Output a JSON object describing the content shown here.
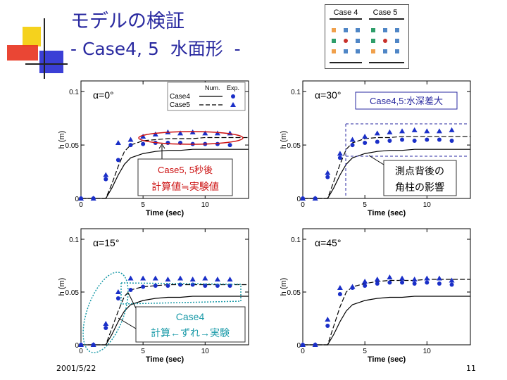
{
  "slide": {
    "title_line1": "モデルの検証",
    "title_line2": "- Case4, 5  水面形  -",
    "date": "2001/5/22",
    "page_number": "11"
  },
  "case_diagram": {
    "labels": [
      "Case 4",
      "Case 5"
    ],
    "marker_colors": [
      "#4f86c6",
      "#c8302a",
      "#2e9e6a",
      "#f0a04b"
    ]
  },
  "legend": {
    "col_num": "Num.",
    "col_exp": "Exp.",
    "rows": [
      "Case4",
      "Case5"
    ]
  },
  "annotations": {
    "a0_line1": "Case5, 5秒後",
    "a0_line2": "計算値≒実験値",
    "a30_top": "Case4,5:水深差大",
    "a30_line1": "測点背後の",
    "a30_line2": "角柱の影響",
    "a15_line1": "Case4",
    "a15_line2": "計算←ずれ→実験"
  },
  "colors": {
    "title": "#2a2aa0",
    "marker": "#1a2fc8",
    "red_note": "#cc1111",
    "cyan_note": "#1a9aa8"
  },
  "chart_data": [
    {
      "type": "line",
      "panel_label": "α=0°",
      "xlabel": "Time (sec)",
      "ylabel": "h (m)",
      "xlim": [
        0,
        13.5
      ],
      "ylim": [
        0,
        0.11
      ],
      "x_ticks": [
        0,
        5,
        10
      ],
      "y_ticks": [
        0,
        0.05,
        0.1
      ],
      "y_tick_labels": [
        "0",
        "0.05",
        "0.1"
      ],
      "series": [
        {
          "name": "Case4",
          "kind": "line",
          "style": "solid",
          "x": [
            0,
            1,
            2,
            2.5,
            3,
            3.5,
            4,
            5,
            6,
            7,
            8,
            9,
            10,
            11,
            12,
            13.5
          ],
          "y": [
            0,
            0,
            0,
            0.01,
            0.022,
            0.032,
            0.038,
            0.042,
            0.044,
            0.045,
            0.045,
            0.046,
            0.046,
            0.046,
            0.046,
            0.046
          ]
        },
        {
          "name": "Case5",
          "kind": "line",
          "style": "dashed",
          "x": [
            0,
            1,
            2,
            2.5,
            3,
            3.5,
            4,
            5,
            6,
            7,
            8,
            9,
            10,
            11,
            12,
            13.5
          ],
          "y": [
            0,
            0,
            0,
            0.014,
            0.03,
            0.044,
            0.05,
            0.054,
            0.055,
            0.056,
            0.056,
            0.056,
            0.057,
            0.057,
            0.057,
            0.057
          ]
        },
        {
          "name": "Case4",
          "kind": "marker",
          "marker": "circle",
          "x": [
            0,
            1,
            2,
            3,
            4,
            5,
            6,
            7,
            8,
            9,
            10,
            11,
            12
          ],
          "y": [
            0,
            0,
            0.018,
            0.036,
            0.05,
            0.051,
            0.052,
            0.052,
            0.052,
            0.051,
            0.051,
            0.051,
            0.05
          ]
        },
        {
          "name": "Case5",
          "kind": "marker",
          "marker": "triangle",
          "x": [
            0,
            1,
            2,
            3,
            4,
            5,
            6,
            7,
            8,
            9,
            10,
            11,
            12
          ],
          "y": [
            0,
            0,
            0.022,
            0.052,
            0.055,
            0.058,
            0.06,
            0.062,
            0.061,
            0.062,
            0.061,
            0.061,
            0.061
          ]
        }
      ]
    },
    {
      "type": "line",
      "panel_label": "α=30°",
      "xlabel": "Time (sec)",
      "ylabel": "h (m)",
      "xlim": [
        0,
        13.5
      ],
      "ylim": [
        0,
        0.11
      ],
      "x_ticks": [
        0,
        5,
        10
      ],
      "y_ticks": [
        0,
        0.05,
        0.1
      ],
      "y_tick_labels": [
        "0",
        "0.05",
        "0.1"
      ],
      "series": [
        {
          "name": "Case4",
          "kind": "line",
          "style": "solid",
          "x": [
            0,
            1,
            2,
            2.5,
            3,
            3.5,
            4,
            5,
            6,
            7,
            8,
            9,
            10,
            11,
            12,
            13.5
          ],
          "y": [
            0,
            0,
            0,
            0.01,
            0.022,
            0.032,
            0.038,
            0.042,
            0.044,
            0.045,
            0.045,
            0.046,
            0.046,
            0.046,
            0.046,
            0.046
          ]
        },
        {
          "name": "Case5",
          "kind": "line",
          "style": "dashed",
          "x": [
            0,
            1,
            2,
            2.5,
            3,
            3.5,
            4,
            5,
            6,
            7,
            8,
            9,
            10,
            11,
            12,
            13.5
          ],
          "y": [
            0,
            0,
            0,
            0.016,
            0.032,
            0.046,
            0.052,
            0.056,
            0.057,
            0.057,
            0.058,
            0.058,
            0.058,
            0.058,
            0.058,
            0.058
          ]
        },
        {
          "name": "Case4",
          "kind": "marker",
          "marker": "circle",
          "x": [
            0,
            1,
            2,
            3,
            4,
            5,
            6,
            7,
            8,
            9,
            10,
            11,
            12
          ],
          "y": [
            0,
            0,
            0.02,
            0.038,
            0.05,
            0.052,
            0.053,
            0.054,
            0.055,
            0.054,
            0.055,
            0.055,
            0.054
          ]
        },
        {
          "name": "Case5",
          "kind": "marker",
          "marker": "triangle",
          "x": [
            0,
            1,
            2,
            3,
            4,
            5,
            6,
            7,
            8,
            9,
            10,
            11,
            12
          ],
          "y": [
            0,
            0,
            0.024,
            0.042,
            0.055,
            0.058,
            0.061,
            0.062,
            0.063,
            0.064,
            0.063,
            0.063,
            0.064
          ]
        }
      ]
    },
    {
      "type": "line",
      "panel_label": "α=15°",
      "xlabel": "Time (sec)",
      "ylabel": "h (m)",
      "xlim": [
        0,
        13.5
      ],
      "ylim": [
        0,
        0.11
      ],
      "x_ticks": [
        0,
        5,
        10
      ],
      "y_ticks": [
        0,
        0.05,
        0.1
      ],
      "y_tick_labels": [
        "0",
        "0.05",
        "0.1"
      ],
      "series": [
        {
          "name": "Case4",
          "kind": "line",
          "style": "solid",
          "x": [
            0,
            1,
            2,
            2.5,
            3,
            3.5,
            4,
            5,
            6,
            7,
            8,
            9,
            10,
            11,
            12,
            13.5
          ],
          "y": [
            0,
            0,
            0,
            0.01,
            0.022,
            0.032,
            0.038,
            0.042,
            0.044,
            0.045,
            0.045,
            0.046,
            0.046,
            0.046,
            0.046,
            0.046
          ]
        },
        {
          "name": "Case5",
          "kind": "line",
          "style": "dashed",
          "x": [
            0,
            1,
            2,
            2.5,
            3,
            3.5,
            4,
            5,
            6,
            7,
            8,
            9,
            10,
            11,
            12,
            13.5
          ],
          "y": [
            0,
            0,
            0,
            0.016,
            0.032,
            0.046,
            0.052,
            0.055,
            0.056,
            0.057,
            0.057,
            0.057,
            0.057,
            0.057,
            0.057,
            0.057
          ]
        },
        {
          "name": "Case4",
          "kind": "marker",
          "marker": "circle",
          "x": [
            0,
            1,
            2,
            3,
            4,
            5,
            6,
            7,
            8,
            9,
            10,
            11,
            12
          ],
          "y": [
            0,
            0,
            0.016,
            0.044,
            0.052,
            0.055,
            0.056,
            0.056,
            0.057,
            0.057,
            0.056,
            0.056,
            0.056
          ]
        },
        {
          "name": "Case5",
          "kind": "marker",
          "marker": "triangle",
          "x": [
            0,
            1,
            2,
            3,
            4,
            5,
            6,
            7,
            8,
            9,
            10,
            11,
            12
          ],
          "y": [
            0,
            0,
            0.02,
            0.05,
            0.063,
            0.063,
            0.063,
            0.062,
            0.063,
            0.062,
            0.063,
            0.062,
            0.062
          ]
        }
      ]
    },
    {
      "type": "line",
      "panel_label": "α=45°",
      "xlabel": "Time (sec)",
      "ylabel": "h (m)",
      "xlim": [
        0,
        13.5
      ],
      "ylim": [
        0,
        0.11
      ],
      "x_ticks": [
        0,
        5,
        10
      ],
      "y_ticks": [
        0,
        0.05,
        0.1
      ],
      "y_tick_labels": [
        "0",
        "0.05",
        "0.1"
      ],
      "series": [
        {
          "name": "Case4",
          "kind": "line",
          "style": "solid",
          "x": [
            0,
            1,
            2,
            2.5,
            3,
            3.5,
            4,
            5,
            6,
            7,
            8,
            9,
            10,
            11,
            12,
            13.5
          ],
          "y": [
            0,
            0,
            0,
            0.01,
            0.022,
            0.032,
            0.038,
            0.042,
            0.044,
            0.045,
            0.045,
            0.046,
            0.046,
            0.046,
            0.046,
            0.046
          ]
        },
        {
          "name": "Case5",
          "kind": "line",
          "style": "dashed",
          "x": [
            0,
            1,
            2,
            2.5,
            3,
            3.5,
            4,
            5,
            6,
            7,
            8,
            9,
            10,
            11,
            12,
            13.5
          ],
          "y": [
            0,
            0,
            0,
            0.018,
            0.036,
            0.05,
            0.055,
            0.058,
            0.06,
            0.061,
            0.061,
            0.061,
            0.062,
            0.062,
            0.062,
            0.062
          ]
        },
        {
          "name": "Case4",
          "kind": "marker",
          "marker": "circle",
          "x": [
            0,
            1,
            2,
            3,
            4,
            5,
            6,
            7,
            8,
            9,
            10,
            11,
            12
          ],
          "y": [
            0,
            0,
            0.018,
            0.048,
            0.054,
            0.056,
            0.058,
            0.059,
            0.059,
            0.058,
            0.059,
            0.058,
            0.057
          ]
        },
        {
          "name": "Case5",
          "kind": "marker",
          "marker": "triangle",
          "x": [
            0,
            1,
            2,
            3,
            4,
            5,
            6,
            7,
            8,
            9,
            10,
            11,
            12
          ],
          "y": [
            0,
            0,
            0.024,
            0.054,
            0.055,
            0.06,
            0.062,
            0.064,
            0.063,
            0.062,
            0.063,
            0.063,
            0.061
          ]
        }
      ]
    }
  ]
}
